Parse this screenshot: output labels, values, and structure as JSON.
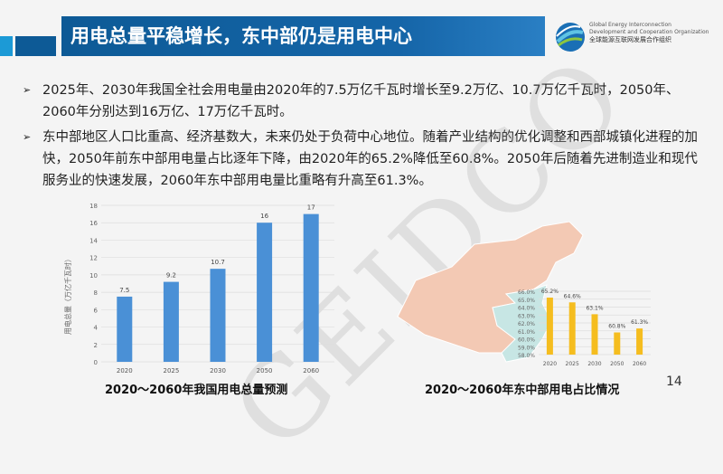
{
  "header": {
    "title": "用电总量平稳增长，东中部仍是用电中心"
  },
  "logo": {
    "en1": "Global Energy Interconnection",
    "en2": "Development and Cooperation Organization",
    "cn": "全球能源互联网发展合作组织"
  },
  "bullets": [
    "2025年、2030年我国全社会用电量由2020年的7.5万亿千瓦时增长至9.2万亿、10.7万亿千瓦时，2050年、2060年分别达到16万亿、17万亿千瓦时。",
    "东中部地区人口比重高、经济基数大，未来仍处于负荷中心地位。随着产业结构的优化调整和西部城镇化进程的加快，2050年前东中部用电量占比逐年下降，由2020年的65.2%降低至60.8%。2050年后随着先进制造业和现代服务业的快速发展，2060年东中部用电量比重略有升高至61.3%。"
  ],
  "bullet_marker": "➢",
  "watermark": "GEIDCO",
  "page_number": "14",
  "colors": {
    "banner": "#0d5a96",
    "bar1": "#4a90d6",
    "bar2": "#f5bd1f",
    "map": "#f3c9b4",
    "map_east": "#c7e6e4"
  },
  "chart_data": [
    {
      "type": "bar",
      "caption": "2020～2060年我国用电总量预测",
      "ylabel": "用电总量（万亿千瓦时）",
      "categories": [
        "2020",
        "2025",
        "2030",
        "2050",
        "2060"
      ],
      "values": [
        7.5,
        9.2,
        10.7,
        16,
        17
      ],
      "data_labels": [
        "7.5",
        "9.2",
        "10.7",
        "16",
        "17"
      ],
      "ylim": [
        0,
        18
      ],
      "yticks": [
        "0",
        "2",
        "4",
        "6",
        "8",
        "10",
        "12",
        "14",
        "16",
        "18"
      ],
      "grid": true
    },
    {
      "type": "bar",
      "caption": "2020～2060年东中部用电占比情况",
      "categories": [
        "2020",
        "2025",
        "2030",
        "2050",
        "2060"
      ],
      "values": [
        65.2,
        64.6,
        63.1,
        60.8,
        61.3
      ],
      "data_labels": [
        "65.2%",
        "64.6%",
        "63.1%",
        "60.8%",
        "61.3%"
      ],
      "ylim": [
        58,
        66
      ],
      "yticks": [
        "66.0%",
        "65.0%",
        "64.0%",
        "63.0%",
        "62.0%",
        "61.0%",
        "60.0%",
        "59.0%",
        "58.0%"
      ],
      "grid": true
    }
  ]
}
